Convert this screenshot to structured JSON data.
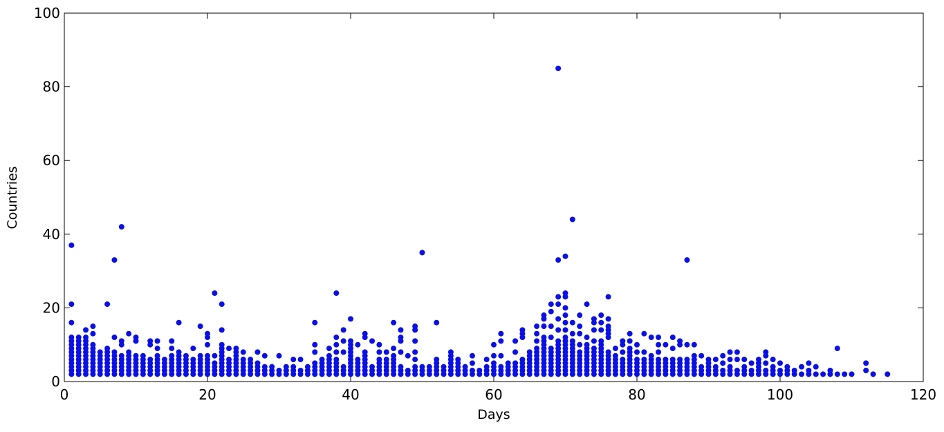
{
  "chart_data": {
    "type": "scatter",
    "x_label": "Days",
    "y_label": "Countries",
    "color": "#0a10e6",
    "xlim": [
      0,
      120
    ],
    "xticks": [
      0,
      20,
      40,
      60,
      80,
      100,
      120
    ],
    "ylim": [
      0,
      100
    ],
    "yticks": [
      0,
      20,
      40,
      60,
      80,
      100
    ],
    "x": [
      1,
      2,
      3,
      4,
      5,
      6,
      7,
      8,
      9,
      10,
      11,
      12,
      13,
      14,
      15,
      16,
      17,
      18,
      19,
      20,
      21,
      22,
      23,
      24,
      25,
      26,
      27,
      28,
      29,
      30,
      31,
      32,
      33,
      34,
      35,
      36,
      37,
      38,
      39,
      40,
      41,
      42,
      43,
      44,
      45,
      46,
      47,
      48,
      49,
      50,
      51,
      52,
      53,
      54,
      55,
      56,
      57,
      58,
      59,
      60,
      61,
      62,
      63,
      64,
      65,
      66,
      67,
      68,
      69,
      70,
      71,
      72,
      73,
      74,
      75,
      76,
      77,
      78,
      79,
      80,
      81,
      82,
      83,
      84,
      85,
      86,
      87,
      88,
      89,
      90,
      91,
      92,
      93,
      94,
      95,
      96,
      97,
      98,
      99,
      100,
      101,
      102,
      103,
      104,
      105,
      106,
      107,
      108,
      109,
      110,
      112,
      113,
      115
    ],
    "values": [
      [
        2,
        3,
        4,
        5,
        6,
        7,
        8,
        9,
        10,
        11,
        12,
        16,
        21,
        37
      ],
      [
        2,
        3,
        4,
        5,
        6,
        7,
        8,
        9,
        10,
        11,
        12
      ],
      [
        2,
        3,
        4,
        5,
        6,
        7,
        8,
        9,
        10,
        11,
        12,
        14
      ],
      [
        2,
        3,
        4,
        5,
        6,
        7,
        8,
        9,
        10,
        13,
        15
      ],
      [
        2,
        3,
        4,
        5,
        6,
        7,
        8
      ],
      [
        2,
        3,
        4,
        5,
        6,
        7,
        8,
        9,
        21
      ],
      [
        2,
        3,
        4,
        5,
        6,
        7,
        8,
        12,
        33
      ],
      [
        2,
        3,
        4,
        5,
        6,
        7,
        10,
        11,
        42
      ],
      [
        2,
        3,
        4,
        5,
        6,
        7,
        8,
        13
      ],
      [
        2,
        3,
        4,
        5,
        6,
        7,
        11,
        12
      ],
      [
        2,
        3,
        4,
        5,
        6,
        7
      ],
      [
        2,
        3,
        4,
        5,
        6,
        10,
        11
      ],
      [
        2,
        3,
        4,
        5,
        6,
        7,
        9,
        11
      ],
      [
        2,
        3,
        4,
        5,
        6
      ],
      [
        2,
        3,
        4,
        5,
        6,
        7,
        9,
        11
      ],
      [
        2,
        3,
        4,
        5,
        6,
        7,
        8,
        16
      ],
      [
        2,
        3,
        4,
        5,
        6,
        7
      ],
      [
        2,
        3,
        4,
        5,
        6,
        9
      ],
      [
        2,
        3,
        4,
        5,
        6,
        7,
        15
      ],
      [
        2,
        3,
        4,
        5,
        6,
        7,
        10,
        12,
        13
      ],
      [
        2,
        3,
        4,
        5,
        7,
        24
      ],
      [
        2,
        3,
        4,
        5,
        6,
        7,
        8,
        9,
        10,
        14,
        21
      ],
      [
        2,
        3,
        4,
        5,
        6,
        9
      ],
      [
        2,
        3,
        4,
        5,
        6,
        7,
        8,
        9
      ],
      [
        2,
        3,
        4,
        5,
        6,
        8
      ],
      [
        2,
        3,
        4,
        5,
        6
      ],
      [
        2,
        3,
        4,
        5,
        8
      ],
      [
        2,
        3,
        4,
        7
      ],
      [
        2,
        3,
        4
      ],
      [
        2,
        3,
        7
      ],
      [
        2,
        3,
        4
      ],
      [
        2,
        3,
        4,
        6
      ],
      [
        2,
        3,
        6
      ],
      [
        2,
        3,
        4
      ],
      [
        2,
        3,
        4,
        5,
        8,
        10,
        16
      ],
      [
        2,
        3,
        4,
        5,
        6
      ],
      [
        2,
        3,
        4,
        5,
        6,
        7,
        9
      ],
      [
        2,
        3,
        4,
        5,
        6,
        8,
        10,
        12,
        24
      ],
      [
        2,
        3,
        4,
        8,
        11,
        14
      ],
      [
        2,
        3,
        4,
        5,
        6,
        7,
        8,
        9,
        10,
        11,
        17
      ],
      [
        2,
        3,
        4,
        5,
        6,
        10
      ],
      [
        2,
        3,
        4,
        5,
        6,
        7,
        8,
        12,
        13
      ],
      [
        2,
        3,
        4,
        11
      ],
      [
        2,
        3,
        4,
        5,
        6,
        8,
        10
      ],
      [
        2,
        3,
        4,
        5,
        6,
        8
      ],
      [
        2,
        3,
        4,
        5,
        6,
        7,
        9,
        16
      ],
      [
        2,
        3,
        4,
        8,
        11,
        12,
        14
      ],
      [
        2,
        3,
        7
      ],
      [
        2,
        3,
        4,
        6,
        8,
        11,
        14,
        15
      ],
      [
        2,
        3,
        4,
        35
      ],
      [
        2,
        3,
        4
      ],
      [
        2,
        3,
        4,
        5,
        6,
        16
      ],
      [
        2,
        3,
        4
      ],
      [
        2,
        3,
        4,
        5,
        6,
        7,
        8
      ],
      [
        2,
        3,
        4,
        5,
        6
      ],
      [
        2,
        3,
        4
      ],
      [
        2,
        3,
        5,
        7
      ],
      [
        2,
        3
      ],
      [
        2,
        3,
        4,
        6
      ],
      [
        2,
        3,
        4,
        5,
        7,
        10
      ],
      [
        2,
        3,
        4,
        7,
        11,
        13
      ],
      [
        2,
        3,
        4,
        5
      ],
      [
        2,
        3,
        4,
        5,
        8,
        11
      ],
      [
        2,
        3,
        4,
        5,
        6,
        12,
        13,
        14
      ],
      [
        2,
        3,
        4,
        5,
        6,
        7,
        8
      ],
      [
        2,
        3,
        4,
        5,
        6,
        7,
        8,
        9,
        11,
        13,
        15
      ],
      [
        2,
        3,
        4,
        5,
        6,
        7,
        8,
        9,
        10,
        11,
        12,
        15,
        17,
        18
      ],
      [
        2,
        3,
        4,
        5,
        6,
        7,
        8,
        9,
        12,
        15,
        19,
        21
      ],
      [
        2,
        3,
        4,
        5,
        6,
        7,
        8,
        9,
        10,
        11,
        14,
        17,
        21,
        23,
        33,
        85
      ],
      [
        2,
        3,
        4,
        5,
        6,
        7,
        8,
        9,
        10,
        11,
        12,
        14,
        16,
        18,
        20,
        23,
        24,
        34
      ],
      [
        2,
        3,
        4,
        5,
        6,
        7,
        8,
        9,
        10,
        11,
        13,
        16,
        44
      ],
      [
        2,
        3,
        4,
        5,
        6,
        7,
        8,
        10,
        13,
        15,
        18
      ],
      [
        2,
        3,
        4,
        5,
        6,
        7,
        8,
        9,
        10,
        12,
        21
      ],
      [
        2,
        3,
        4,
        5,
        6,
        7,
        8,
        9,
        11,
        14,
        16,
        17
      ],
      [
        2,
        3,
        4,
        5,
        6,
        7,
        8,
        9,
        10,
        11,
        14,
        16,
        18
      ],
      [
        2,
        3,
        4,
        5,
        6,
        7,
        8,
        12,
        13,
        14,
        15,
        17,
        23
      ],
      [
        2,
        3,
        4,
        5,
        6,
        7,
        9
      ],
      [
        2,
        3,
        4,
        5,
        6,
        8,
        10,
        11
      ],
      [
        2,
        3,
        4,
        5,
        6,
        7,
        8,
        9,
        11,
        13
      ],
      [
        2,
        3,
        4,
        5,
        6,
        8,
        10
      ],
      [
        2,
        3,
        4,
        5,
        6,
        8,
        13
      ],
      [
        2,
        3,
        4,
        5,
        6,
        7,
        12
      ],
      [
        2,
        3,
        4,
        5,
        6,
        8,
        10,
        12
      ],
      [
        2,
        3,
        4,
        5,
        6,
        10
      ],
      [
        2,
        3,
        4,
        5,
        6,
        9,
        12
      ],
      [
        2,
        3,
        4,
        5,
        6,
        10,
        11
      ],
      [
        2,
        3,
        4,
        5,
        6,
        10,
        33
      ],
      [
        2,
        3,
        4,
        5,
        6,
        7,
        10
      ],
      [
        2,
        3,
        4,
        7
      ],
      [
        2,
        3,
        4,
        5,
        6
      ],
      [
        2,
        3,
        4,
        6
      ],
      [
        2,
        3,
        5,
        7
      ],
      [
        2,
        3,
        4,
        6,
        8
      ],
      [
        2,
        3,
        6,
        8
      ],
      [
        2,
        3,
        4,
        6
      ],
      [
        2,
        3,
        5
      ],
      [
        2,
        3,
        4,
        5,
        6
      ],
      [
        2,
        3,
        5,
        7,
        8
      ],
      [
        2,
        3,
        4,
        6
      ],
      [
        2,
        3,
        5
      ],
      [
        2,
        3,
        4
      ],
      [
        2,
        3
      ],
      [
        2,
        4
      ],
      [
        2,
        3,
        5
      ],
      [
        2,
        4
      ],
      [
        2
      ],
      [
        2,
        3
      ],
      [
        2,
        9
      ],
      [
        2
      ],
      [
        2
      ],
      [
        3,
        5
      ],
      [
        2
      ],
      [
        2
      ]
    ]
  }
}
